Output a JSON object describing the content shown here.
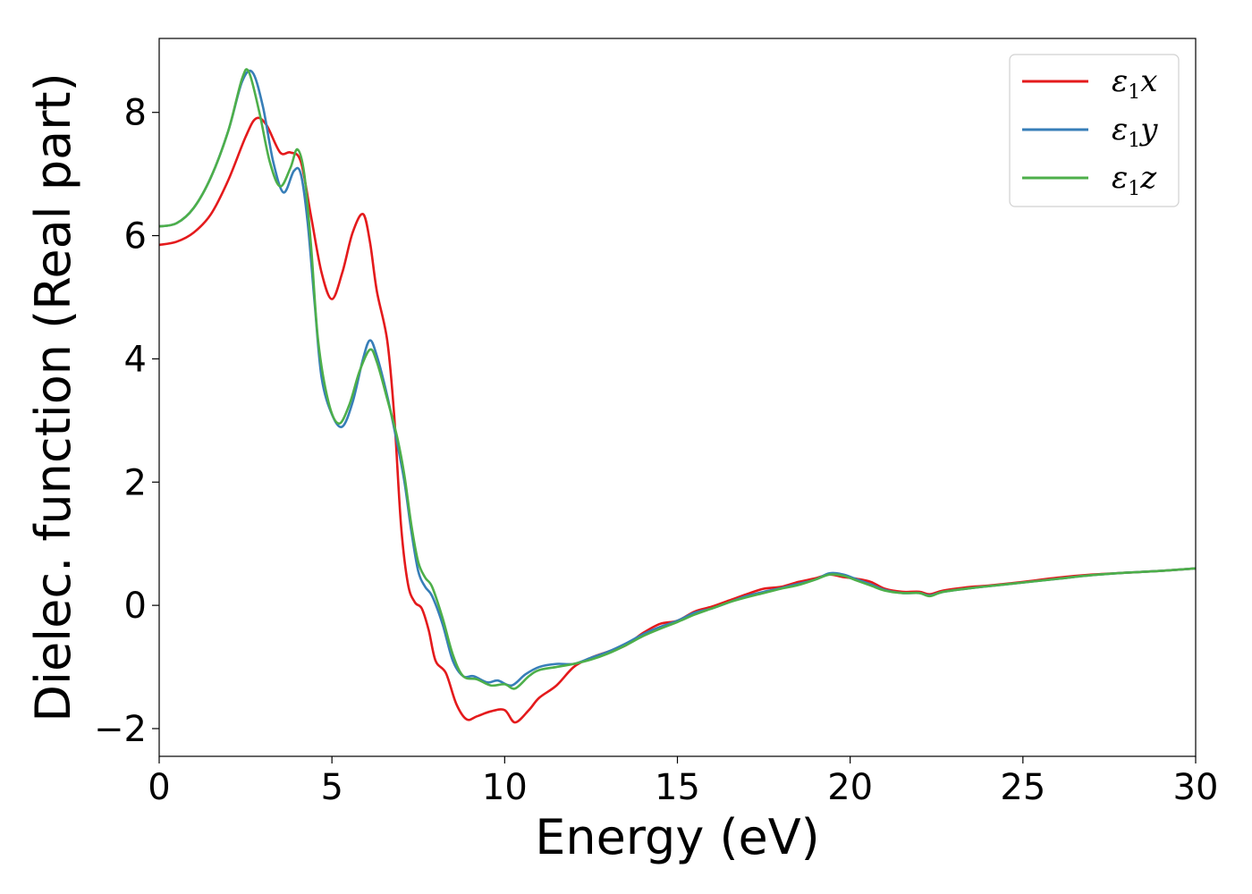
{
  "chart_data": {
    "type": "line",
    "xlabel": "Energy (eV)",
    "ylabel": "Dielec. function (Real part)",
    "xlim": [
      0,
      30
    ],
    "ylim": [
      -2.45,
      9.2
    ],
    "grid": false,
    "legend_position": "top-right",
    "xticks": [
      0,
      5,
      10,
      15,
      20,
      25,
      30
    ],
    "xtick_labels": [
      "0",
      "5",
      "10",
      "15",
      "20",
      "25",
      "30"
    ],
    "yticks": [
      -2,
      0,
      2,
      4,
      6,
      8
    ],
    "ytick_labels": [
      "−2",
      "0",
      "2",
      "4",
      "6",
      "8"
    ],
    "series": [
      {
        "name": "ε1x",
        "legend_base": "ε",
        "legend_sub": "1",
        "legend_tail": "x",
        "color": "#e41a1c",
        "points": [
          [
            0,
            5.85
          ],
          [
            0.5,
            5.9
          ],
          [
            1,
            6.05
          ],
          [
            1.5,
            6.35
          ],
          [
            2,
            6.9
          ],
          [
            2.5,
            7.6
          ],
          [
            2.8,
            7.9
          ],
          [
            3.1,
            7.8
          ],
          [
            3.5,
            7.35
          ],
          [
            3.8,
            7.35
          ],
          [
            4.1,
            7.2
          ],
          [
            4.4,
            6.3
          ],
          [
            4.7,
            5.4
          ],
          [
            5.0,
            4.97
          ],
          [
            5.3,
            5.4
          ],
          [
            5.6,
            6.05
          ],
          [
            5.9,
            6.35
          ],
          [
            6.1,
            5.9
          ],
          [
            6.3,
            5.1
          ],
          [
            6.6,
            4.3
          ],
          [
            6.8,
            3.1
          ],
          [
            7.0,
            1.3
          ],
          [
            7.2,
            0.35
          ],
          [
            7.4,
            0.05
          ],
          [
            7.6,
            -0.05
          ],
          [
            7.8,
            -0.4
          ],
          [
            8.0,
            -0.9
          ],
          [
            8.3,
            -1.1
          ],
          [
            8.6,
            -1.6
          ],
          [
            8.9,
            -1.85
          ],
          [
            9.2,
            -1.8
          ],
          [
            9.6,
            -1.72
          ],
          [
            10.0,
            -1.7
          ],
          [
            10.3,
            -1.9
          ],
          [
            10.7,
            -1.7
          ],
          [
            11.0,
            -1.5
          ],
          [
            11.5,
            -1.3
          ],
          [
            12.0,
            -1.0
          ],
          [
            12.5,
            -0.85
          ],
          [
            13.0,
            -0.75
          ],
          [
            13.5,
            -0.65
          ],
          [
            14.0,
            -0.45
          ],
          [
            14.5,
            -0.3
          ],
          [
            15.0,
            -0.25
          ],
          [
            15.5,
            -0.1
          ],
          [
            16.0,
            -0.02
          ],
          [
            16.5,
            0.08
          ],
          [
            17.0,
            0.18
          ],
          [
            17.5,
            0.27
          ],
          [
            18.0,
            0.3
          ],
          [
            18.5,
            0.38
          ],
          [
            19.0,
            0.44
          ],
          [
            19.4,
            0.5
          ],
          [
            19.8,
            0.46
          ],
          [
            20.2,
            0.43
          ],
          [
            20.6,
            0.38
          ],
          [
            21.0,
            0.27
          ],
          [
            21.5,
            0.22
          ],
          [
            22.0,
            0.22
          ],
          [
            22.3,
            0.18
          ],
          [
            22.7,
            0.24
          ],
          [
            23.5,
            0.3
          ],
          [
            24.0,
            0.32
          ],
          [
            25.0,
            0.38
          ],
          [
            26.0,
            0.45
          ],
          [
            27.0,
            0.5
          ],
          [
            28.0,
            0.53
          ],
          [
            29.0,
            0.56
          ],
          [
            30.0,
            0.6
          ]
        ]
      },
      {
        "name": "ε1y",
        "legend_base": "ε",
        "legend_sub": "1",
        "legend_tail": "y",
        "color": "#377eb8",
        "points": [
          [
            0,
            6.15
          ],
          [
            0.5,
            6.2
          ],
          [
            1,
            6.45
          ],
          [
            1.5,
            6.95
          ],
          [
            2,
            7.7
          ],
          [
            2.4,
            8.5
          ],
          [
            2.7,
            8.65
          ],
          [
            3.0,
            8.1
          ],
          [
            3.3,
            7.2
          ],
          [
            3.6,
            6.7
          ],
          [
            3.9,
            7.05
          ],
          [
            4.1,
            7.0
          ],
          [
            4.3,
            6.2
          ],
          [
            4.5,
            4.9
          ],
          [
            4.7,
            3.7
          ],
          [
            5.0,
            3.1
          ],
          [
            5.3,
            2.9
          ],
          [
            5.6,
            3.3
          ],
          [
            5.9,
            4.0
          ],
          [
            6.1,
            4.3
          ],
          [
            6.3,
            4.05
          ],
          [
            6.6,
            3.4
          ],
          [
            6.9,
            2.6
          ],
          [
            7.1,
            2.0
          ],
          [
            7.3,
            1.2
          ],
          [
            7.5,
            0.55
          ],
          [
            7.7,
            0.3
          ],
          [
            7.9,
            0.15
          ],
          [
            8.2,
            -0.3
          ],
          [
            8.5,
            -0.9
          ],
          [
            8.8,
            -1.15
          ],
          [
            9.1,
            -1.15
          ],
          [
            9.5,
            -1.25
          ],
          [
            9.8,
            -1.22
          ],
          [
            10.2,
            -1.3
          ],
          [
            10.6,
            -1.12
          ],
          [
            11.0,
            -1.0
          ],
          [
            11.5,
            -0.95
          ],
          [
            12.0,
            -0.95
          ],
          [
            12.5,
            -0.85
          ],
          [
            13.0,
            -0.75
          ],
          [
            13.5,
            -0.62
          ],
          [
            14.0,
            -0.47
          ],
          [
            14.5,
            -0.35
          ],
          [
            15.0,
            -0.25
          ],
          [
            15.5,
            -0.12
          ],
          [
            16.0,
            -0.05
          ],
          [
            16.5,
            0.05
          ],
          [
            17.0,
            0.15
          ],
          [
            17.5,
            0.22
          ],
          [
            18.0,
            0.28
          ],
          [
            18.5,
            0.35
          ],
          [
            19.0,
            0.42
          ],
          [
            19.4,
            0.52
          ],
          [
            19.8,
            0.5
          ],
          [
            20.2,
            0.42
          ],
          [
            20.6,
            0.34
          ],
          [
            21.0,
            0.25
          ],
          [
            21.5,
            0.2
          ],
          [
            22.0,
            0.2
          ],
          [
            22.3,
            0.16
          ],
          [
            22.7,
            0.22
          ],
          [
            23.5,
            0.28
          ],
          [
            24.0,
            0.31
          ],
          [
            25.0,
            0.37
          ],
          [
            26.0,
            0.43
          ],
          [
            27.0,
            0.49
          ],
          [
            28.0,
            0.53
          ],
          [
            29.0,
            0.56
          ],
          [
            30.0,
            0.6
          ]
        ]
      },
      {
        "name": "ε1z",
        "legend_base": "ε",
        "legend_sub": "1",
        "legend_tail": "z",
        "color": "#4daf4a",
        "points": [
          [
            0,
            6.15
          ],
          [
            0.5,
            6.2
          ],
          [
            1,
            6.45
          ],
          [
            1.5,
            6.95
          ],
          [
            2,
            7.7
          ],
          [
            2.4,
            8.55
          ],
          [
            2.6,
            8.65
          ],
          [
            2.9,
            8.0
          ],
          [
            3.2,
            7.2
          ],
          [
            3.5,
            6.8
          ],
          [
            3.8,
            7.1
          ],
          [
            4.0,
            7.4
          ],
          [
            4.2,
            7.0
          ],
          [
            4.4,
            5.8
          ],
          [
            4.6,
            4.3
          ],
          [
            4.9,
            3.3
          ],
          [
            5.2,
            2.95
          ],
          [
            5.5,
            3.25
          ],
          [
            5.8,
            3.8
          ],
          [
            6.1,
            4.15
          ],
          [
            6.3,
            3.95
          ],
          [
            6.6,
            3.35
          ],
          [
            6.9,
            2.7
          ],
          [
            7.1,
            2.1
          ],
          [
            7.3,
            1.3
          ],
          [
            7.5,
            0.7
          ],
          [
            7.7,
            0.45
          ],
          [
            7.9,
            0.3
          ],
          [
            8.2,
            -0.2
          ],
          [
            8.5,
            -0.8
          ],
          [
            8.8,
            -1.15
          ],
          [
            9.2,
            -1.2
          ],
          [
            9.6,
            -1.3
          ],
          [
            10.0,
            -1.28
          ],
          [
            10.3,
            -1.35
          ],
          [
            10.7,
            -1.15
          ],
          [
            11.0,
            -1.05
          ],
          [
            11.5,
            -1.0
          ],
          [
            12.0,
            -0.95
          ],
          [
            12.5,
            -0.88
          ],
          [
            13.0,
            -0.78
          ],
          [
            13.5,
            -0.65
          ],
          [
            14.0,
            -0.5
          ],
          [
            14.5,
            -0.38
          ],
          [
            15.0,
            -0.27
          ],
          [
            15.5,
            -0.15
          ],
          [
            16.0,
            -0.05
          ],
          [
            16.5,
            0.05
          ],
          [
            17.0,
            0.13
          ],
          [
            17.5,
            0.2
          ],
          [
            18.0,
            0.27
          ],
          [
            18.5,
            0.33
          ],
          [
            19.0,
            0.42
          ],
          [
            19.4,
            0.5
          ],
          [
            19.8,
            0.48
          ],
          [
            20.2,
            0.4
          ],
          [
            20.6,
            0.32
          ],
          [
            21.0,
            0.24
          ],
          [
            21.5,
            0.2
          ],
          [
            22.0,
            0.2
          ],
          [
            22.3,
            0.15
          ],
          [
            22.7,
            0.22
          ],
          [
            23.5,
            0.28
          ],
          [
            24.0,
            0.31
          ],
          [
            25.0,
            0.37
          ],
          [
            26.0,
            0.43
          ],
          [
            27.0,
            0.49
          ],
          [
            28.0,
            0.53
          ],
          [
            29.0,
            0.56
          ],
          [
            30.0,
            0.6
          ]
        ]
      }
    ]
  }
}
